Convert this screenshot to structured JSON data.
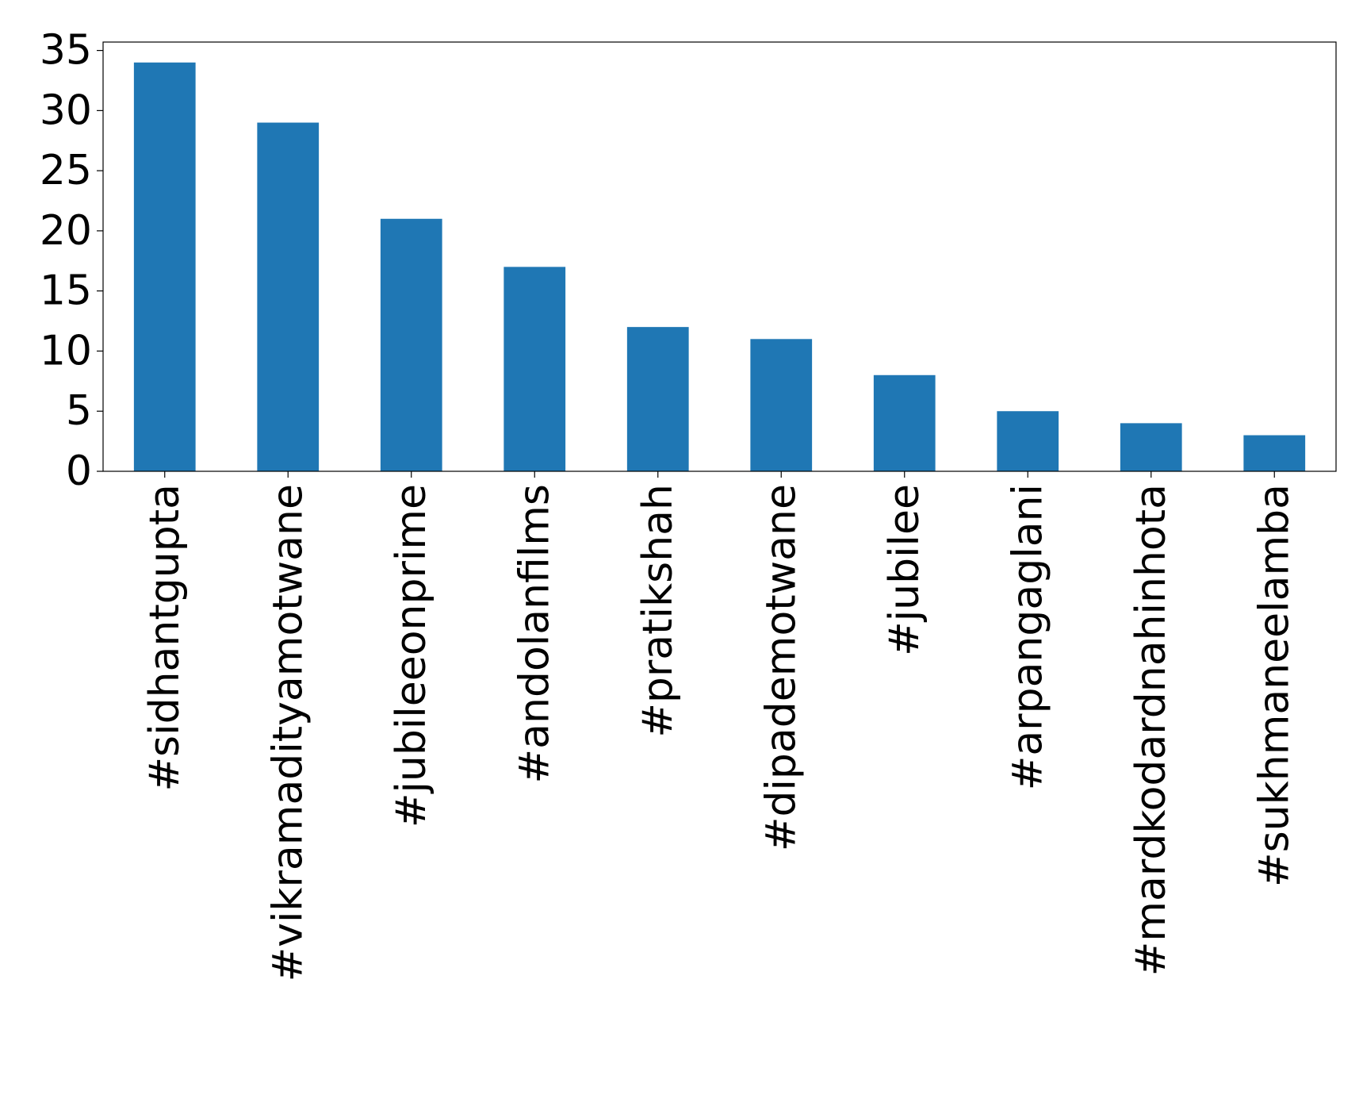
{
  "chart_data": {
    "type": "bar",
    "title": "",
    "xlabel": "",
    "ylabel": "",
    "categories": [
      "#sidhantgupta",
      "#vikramadityamotwane",
      "#jubileeonprime",
      "#andolanfilms",
      "#pratikshah",
      "#dipademotwane",
      "#jubilee",
      "#arpangaglani",
      "#mardkodardnahinhota",
      "#sukhmaneelamba"
    ],
    "values": [
      34,
      29,
      21,
      17,
      12,
      11,
      8,
      5,
      4,
      3
    ],
    "ylim": [
      0,
      35.7
    ],
    "yticks": [
      "0",
      "5",
      "10",
      "15",
      "20",
      "25",
      "30",
      "35"
    ],
    "ytick_values": [
      0,
      5,
      10,
      15,
      20,
      25,
      30,
      35
    ],
    "bar_color": "#1f77b4",
    "grid": false,
    "legend": "none"
  }
}
